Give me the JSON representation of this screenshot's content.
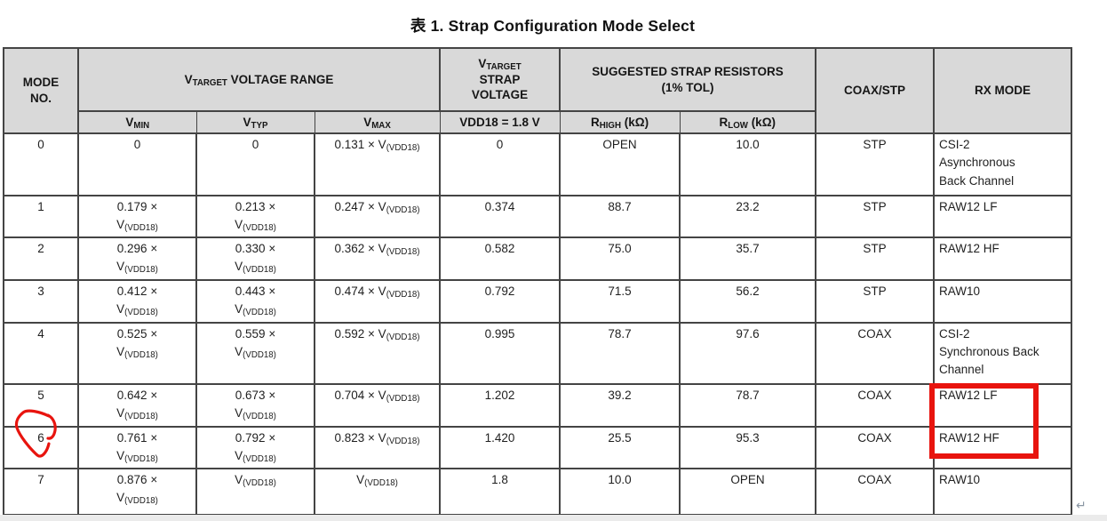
{
  "title": "表 1. Strap Configuration Mode Select",
  "table": {
    "header": {
      "mode_no": "MODE\nNO.",
      "vtarget_range": "V~TARGET~ VOLTAGE RANGE",
      "vtarget_strap": "V~TARGET~\nSTRAP\nVOLTAGE",
      "strap_resistors": "SUGGESTED STRAP RESISTORS\n(1% TOL)",
      "coax_stp": "COAX/STP",
      "rx_mode": "RX MODE",
      "vmin": "V~MIN~",
      "vtyp": "V~TYP~",
      "vmax": "V~MAX~",
      "vdd18": "VDD18 = 1.8 V",
      "rhigh": "R~HIGH~ (kΩ)",
      "rlow": "R~LOW~ (kΩ)"
    },
    "rows": [
      {
        "mode": "0",
        "vmin": "0",
        "vtyp": "0",
        "vmax": "0.131 × V~(VDD18)~",
        "strap": "0",
        "rhigh": "OPEN",
        "rlow": "10.0",
        "cable": "STP",
        "rx": "CSI-2\nAsynchronous\nBack Channel"
      },
      {
        "mode": "1",
        "vmin": "0.179 ×\nV~(VDD18)~",
        "vtyp": "0.213 ×\nV~(VDD18)~",
        "vmax": "0.247 × V~(VDD18)~",
        "strap": "0.374",
        "rhigh": "88.7",
        "rlow": "23.2",
        "cable": "STP",
        "rx": "RAW12 LF"
      },
      {
        "mode": "2",
        "vmin": "0.296 ×\nV~(VDD18)~",
        "vtyp": "0.330 ×\nV~(VDD18)~",
        "vmax": "0.362 × V~(VDD18)~",
        "strap": "0.582",
        "rhigh": "75.0",
        "rlow": "35.7",
        "cable": "STP",
        "rx": "RAW12 HF"
      },
      {
        "mode": "3",
        "vmin": "0.412 ×\nV~(VDD18)~",
        "vtyp": "0.443 ×\nV~(VDD18)~",
        "vmax": "0.474 × V~(VDD18)~",
        "strap": "0.792",
        "rhigh": "71.5",
        "rlow": "56.2",
        "cable": "STP",
        "rx": "RAW10"
      },
      {
        "mode": "4",
        "vmin": "0.525 ×\nV~(VDD18)~",
        "vtyp": "0.559 ×\nV~(VDD18)~",
        "vmax": "0.592 × V~(VDD18)~",
        "strap": "0.995",
        "rhigh": "78.7",
        "rlow": "97.6",
        "cable": "COAX",
        "rx": "CSI-2\nSynchronous Back\nChannel"
      },
      {
        "mode": "5",
        "vmin": "0.642 ×\nV~(VDD18)~",
        "vtyp": "0.673 ×\nV~(VDD18)~",
        "vmax": "0.704 × V~(VDD18)~",
        "strap": "1.202",
        "rhigh": "39.2",
        "rlow": "78.7",
        "cable": "COAX",
        "rx": "RAW12 LF"
      },
      {
        "mode": "6",
        "vmin": "0.761 ×\nV~(VDD18)~",
        "vtyp": "0.792 ×\nV~(VDD18)~",
        "vmax": "0.823 × V~(VDD18)~",
        "strap": "1.420",
        "rhigh": "25.5",
        "rlow": "95.3",
        "cable": "COAX",
        "rx": "RAW12 HF"
      },
      {
        "mode": "7",
        "vmin": "0.876 ×\nV~(VDD18)~",
        "vtyp": "V~(VDD18)~",
        "vmax": "V~(VDD18)~",
        "strap": "1.8",
        "rhigh": "10.0",
        "rlow": "OPEN",
        "cable": "COAX",
        "rx": "RAW10"
      }
    ]
  },
  "annotations": {
    "highlight_color": "#e8140e",
    "return_mark": "↵"
  }
}
